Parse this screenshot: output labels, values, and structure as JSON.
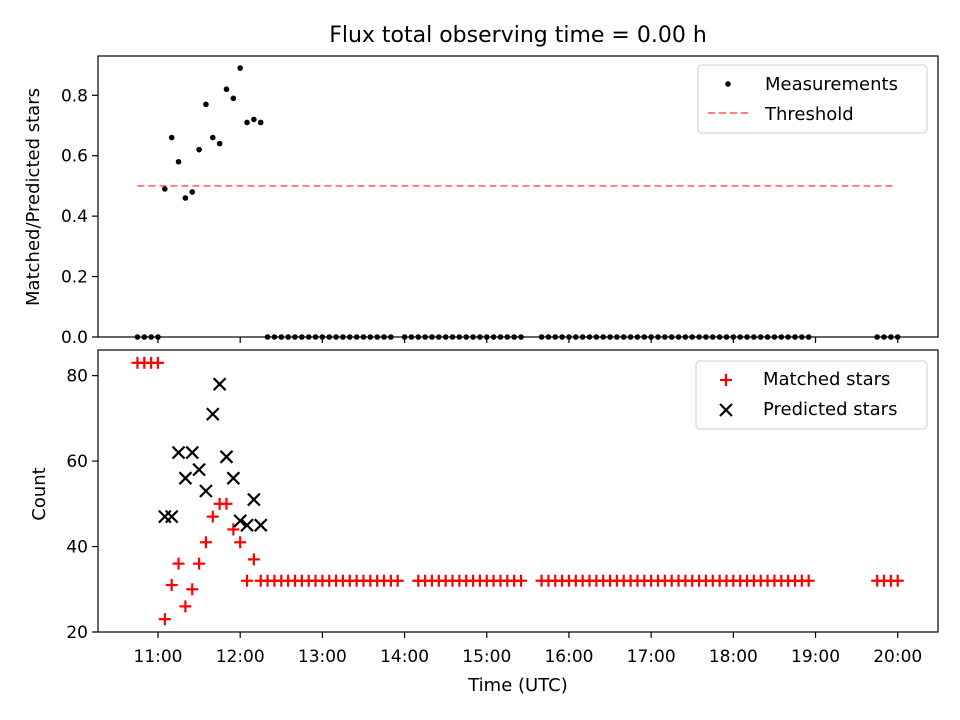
{
  "chart_data": [
    {
      "type": "scatter",
      "title": "Flux total observing time = 0.00 h",
      "xlabel": "",
      "ylabel": "Matched/Predicted stars",
      "ylim": [
        0,
        0.93
      ],
      "xlim_hours": [
        10.27,
        20.49
      ],
      "xtick_hours": [
        11,
        12,
        13,
        14,
        15,
        16,
        17,
        18,
        19,
        20
      ],
      "yticks": [
        0.0,
        0.2,
        0.4,
        0.6,
        0.8
      ],
      "legend_position": "top-right",
      "threshold": {
        "name": "Threshold",
        "y": 0.5,
        "x_start": "10:45",
        "x_end": "19:58",
        "color": "#ff7f7f"
      },
      "series": [
        {
          "name": "Measurements",
          "color": "#000000",
          "points": [
            [
              "10:45",
              0
            ],
            [
              "10:50",
              0
            ],
            [
              "10:55",
              0
            ],
            [
              "11:00",
              0
            ],
            [
              "11:05",
              0.49
            ],
            [
              "11:10",
              0.66
            ],
            [
              "11:15",
              0.58
            ],
            [
              "11:20",
              0.46
            ],
            [
              "11:25",
              0.48
            ],
            [
              "11:30",
              0.62
            ],
            [
              "11:35",
              0.77
            ],
            [
              "11:40",
              0.66
            ],
            [
              "11:45",
              0.64
            ],
            [
              "11:50",
              0.82
            ],
            [
              "11:55",
              0.79
            ],
            [
              "12:00",
              0.89
            ],
            [
              "12:05",
              0.71
            ],
            [
              "12:10",
              0.72
            ],
            [
              "12:15",
              0.71
            ],
            [
              "12:20",
              0
            ],
            [
              "12:25",
              0
            ],
            [
              "12:30",
              0
            ],
            [
              "12:35",
              0
            ],
            [
              "12:40",
              0
            ],
            [
              "12:45",
              0
            ],
            [
              "12:50",
              0
            ],
            [
              "12:55",
              0
            ],
            [
              "13:00",
              0
            ],
            [
              "13:05",
              0
            ],
            [
              "13:10",
              0
            ],
            [
              "13:15",
              0
            ],
            [
              "13:20",
              0
            ],
            [
              "13:25",
              0
            ],
            [
              "13:30",
              0
            ],
            [
              "13:35",
              0
            ],
            [
              "13:40",
              0
            ],
            [
              "13:45",
              0
            ],
            [
              "13:50",
              0
            ],
            [
              "14:00",
              0
            ],
            [
              "14:05",
              0
            ],
            [
              "14:10",
              0
            ],
            [
              "14:15",
              0
            ],
            [
              "14:20",
              0
            ],
            [
              "14:25",
              0
            ],
            [
              "14:30",
              0
            ],
            [
              "14:35",
              0
            ],
            [
              "14:40",
              0
            ],
            [
              "14:45",
              0
            ],
            [
              "14:50",
              0
            ],
            [
              "14:55",
              0
            ],
            [
              "15:00",
              0
            ],
            [
              "15:05",
              0
            ],
            [
              "15:10",
              0
            ],
            [
              "15:15",
              0
            ],
            [
              "15:20",
              0
            ],
            [
              "15:25",
              0
            ],
            [
              "15:40",
              0
            ],
            [
              "15:45",
              0
            ],
            [
              "15:50",
              0
            ],
            [
              "15:55",
              0
            ],
            [
              "16:00",
              0
            ],
            [
              "16:05",
              0
            ],
            [
              "16:10",
              0
            ],
            [
              "16:15",
              0
            ],
            [
              "16:20",
              0
            ],
            [
              "16:25",
              0
            ],
            [
              "16:30",
              0
            ],
            [
              "16:35",
              0
            ],
            [
              "16:40",
              0
            ],
            [
              "16:45",
              0
            ],
            [
              "16:50",
              0
            ],
            [
              "16:55",
              0
            ],
            [
              "17:00",
              0
            ],
            [
              "17:05",
              0
            ],
            [
              "17:10",
              0
            ],
            [
              "17:15",
              0
            ],
            [
              "17:20",
              0
            ],
            [
              "17:25",
              0
            ],
            [
              "17:30",
              0
            ],
            [
              "17:35",
              0
            ],
            [
              "17:40",
              0
            ],
            [
              "17:45",
              0
            ],
            [
              "17:50",
              0
            ],
            [
              "17:55",
              0
            ],
            [
              "18:00",
              0
            ],
            [
              "18:05",
              0
            ],
            [
              "18:10",
              0
            ],
            [
              "18:15",
              0
            ],
            [
              "18:20",
              0
            ],
            [
              "18:25",
              0
            ],
            [
              "18:30",
              0
            ],
            [
              "18:35",
              0
            ],
            [
              "18:40",
              0
            ],
            [
              "18:45",
              0
            ],
            [
              "18:50",
              0
            ],
            [
              "18:55",
              0
            ],
            [
              "19:45",
              0
            ],
            [
              "19:50",
              0
            ],
            [
              "19:55",
              0
            ],
            [
              "20:00",
              0
            ]
          ]
        }
      ]
    },
    {
      "type": "scatter",
      "title": "",
      "xlabel": "Time (UTC)",
      "ylabel": "Count",
      "ylim": [
        20,
        86
      ],
      "xlim_hours": [
        10.27,
        20.49
      ],
      "xtick_labels": [
        "11:00",
        "12:00",
        "13:00",
        "14:00",
        "15:00",
        "16:00",
        "17:00",
        "18:00",
        "19:00",
        "20:00"
      ],
      "xtick_hours": [
        11,
        12,
        13,
        14,
        15,
        16,
        17,
        18,
        19,
        20
      ],
      "yticks": [
        20,
        40,
        60,
        80
      ],
      "legend_position": "top-right",
      "series": [
        {
          "name": "Matched stars",
          "marker": "plus",
          "color": "#ff0000",
          "points": [
            [
              "10:45",
              83
            ],
            [
              "10:50",
              83
            ],
            [
              "10:55",
              83
            ],
            [
              "11:00",
              83
            ],
            [
              "11:05",
              23
            ],
            [
              "11:10",
              31
            ],
            [
              "11:15",
              36
            ],
            [
              "11:20",
              26
            ],
            [
              "11:25",
              30
            ],
            [
              "11:30",
              36
            ],
            [
              "11:35",
              41
            ],
            [
              "11:40",
              47
            ],
            [
              "11:45",
              50
            ],
            [
              "11:50",
              50
            ],
            [
              "11:55",
              44
            ],
            [
              "12:00",
              41
            ],
            [
              "12:05",
              32
            ],
            [
              "12:10",
              37
            ],
            [
              "12:15",
              32
            ],
            [
              "12:20",
              32
            ],
            [
              "12:25",
              32
            ],
            [
              "12:30",
              32
            ],
            [
              "12:35",
              32
            ],
            [
              "12:40",
              32
            ],
            [
              "12:45",
              32
            ],
            [
              "12:50",
              32
            ],
            [
              "12:55",
              32
            ],
            [
              "13:00",
              32
            ],
            [
              "13:05",
              32
            ],
            [
              "13:10",
              32
            ],
            [
              "13:15",
              32
            ],
            [
              "13:20",
              32
            ],
            [
              "13:25",
              32
            ],
            [
              "13:30",
              32
            ],
            [
              "13:35",
              32
            ],
            [
              "13:40",
              32
            ],
            [
              "13:45",
              32
            ],
            [
              "13:50",
              32
            ],
            [
              "13:55",
              32
            ],
            [
              "14:10",
              32
            ],
            [
              "14:15",
              32
            ],
            [
              "14:20",
              32
            ],
            [
              "14:25",
              32
            ],
            [
              "14:30",
              32
            ],
            [
              "14:35",
              32
            ],
            [
              "14:40",
              32
            ],
            [
              "14:45",
              32
            ],
            [
              "14:50",
              32
            ],
            [
              "14:55",
              32
            ],
            [
              "15:00",
              32
            ],
            [
              "15:05",
              32
            ],
            [
              "15:10",
              32
            ],
            [
              "15:15",
              32
            ],
            [
              "15:20",
              32
            ],
            [
              "15:25",
              32
            ],
            [
              "15:40",
              32
            ],
            [
              "15:45",
              32
            ],
            [
              "15:50",
              32
            ],
            [
              "15:55",
              32
            ],
            [
              "16:00",
              32
            ],
            [
              "16:05",
              32
            ],
            [
              "16:10",
              32
            ],
            [
              "16:15",
              32
            ],
            [
              "16:20",
              32
            ],
            [
              "16:25",
              32
            ],
            [
              "16:30",
              32
            ],
            [
              "16:35",
              32
            ],
            [
              "16:40",
              32
            ],
            [
              "16:45",
              32
            ],
            [
              "16:50",
              32
            ],
            [
              "16:55",
              32
            ],
            [
              "17:00",
              32
            ],
            [
              "17:05",
              32
            ],
            [
              "17:10",
              32
            ],
            [
              "17:15",
              32
            ],
            [
              "17:20",
              32
            ],
            [
              "17:25",
              32
            ],
            [
              "17:30",
              32
            ],
            [
              "17:35",
              32
            ],
            [
              "17:40",
              32
            ],
            [
              "17:45",
              32
            ],
            [
              "17:50",
              32
            ],
            [
              "17:55",
              32
            ],
            [
              "18:00",
              32
            ],
            [
              "18:05",
              32
            ],
            [
              "18:10",
              32
            ],
            [
              "18:15",
              32
            ],
            [
              "18:20",
              32
            ],
            [
              "18:25",
              32
            ],
            [
              "18:30",
              32
            ],
            [
              "18:35",
              32
            ],
            [
              "18:40",
              32
            ],
            [
              "18:45",
              32
            ],
            [
              "18:50",
              32
            ],
            [
              "18:55",
              32
            ],
            [
              "19:45",
              32
            ],
            [
              "19:50",
              32
            ],
            [
              "19:55",
              32
            ],
            [
              "20:00",
              32
            ]
          ]
        },
        {
          "name": "Predicted stars",
          "marker": "x",
          "color": "#000000",
          "points": [
            [
              "11:05",
              47
            ],
            [
              "11:10",
              47
            ],
            [
              "11:15",
              62
            ],
            [
              "11:20",
              56
            ],
            [
              "11:25",
              62
            ],
            [
              "11:30",
              58
            ],
            [
              "11:35",
              53
            ],
            [
              "11:40",
              71
            ],
            [
              "11:45",
              78
            ],
            [
              "11:50",
              61
            ],
            [
              "11:55",
              56
            ],
            [
              "12:00",
              46
            ],
            [
              "12:05",
              45
            ],
            [
              "12:10",
              51
            ],
            [
              "12:15",
              45
            ]
          ]
        }
      ]
    }
  ]
}
